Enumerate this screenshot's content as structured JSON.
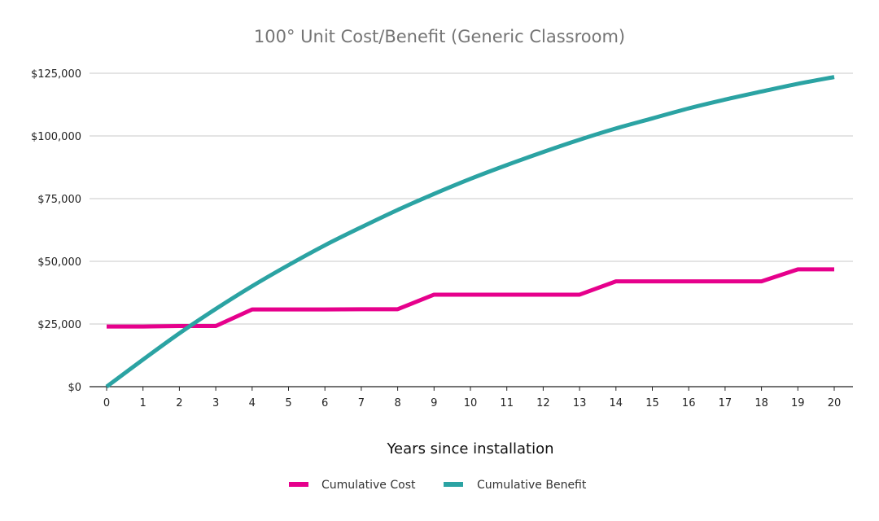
{
  "chart_data": {
    "type": "line",
    "title": "100° Unit Cost/Benefit (Generic Classroom)",
    "xlabel": "Years since installation",
    "ylabel": "",
    "x": [
      0,
      1,
      2,
      3,
      4,
      5,
      6,
      7,
      8,
      9,
      10,
      11,
      12,
      13,
      14,
      15,
      16,
      17,
      18,
      19,
      20
    ],
    "ylim": [
      0,
      125000
    ],
    "yticks": [
      0,
      25000,
      50000,
      75000,
      100000,
      125000
    ],
    "ytick_labels": [
      "$0",
      "$25,000",
      "$50,000",
      "$75,000",
      "$100,000",
      "$125,000"
    ],
    "xtick_labels": [
      "0",
      "1",
      "2",
      "3",
      "4",
      "5",
      "6",
      "7",
      "8",
      "9",
      "10",
      "11",
      "12",
      "13",
      "14",
      "15",
      "16",
      "17",
      "18",
      "19",
      "20"
    ],
    "grid": true,
    "legend_position": "bottom",
    "series": [
      {
        "name": "Cumulative Cost",
        "color": "#e6008c",
        "values": [
          24000,
          24000,
          24200,
          24200,
          30800,
          30800,
          30800,
          30900,
          30900,
          36700,
          36700,
          36700,
          36700,
          36700,
          42000,
          42000,
          42000,
          42000,
          42000,
          46800,
          46800
        ]
      },
      {
        "name": "Cumulative Benefit",
        "color": "#2ba3a3",
        "values": [
          0,
          10800,
          21300,
          31000,
          40100,
          48500,
          56400,
          63600,
          70500,
          76900,
          82900,
          88400,
          93600,
          98500,
          103000,
          107000,
          111000,
          114500,
          117700,
          120800,
          123500
        ]
      }
    ]
  }
}
